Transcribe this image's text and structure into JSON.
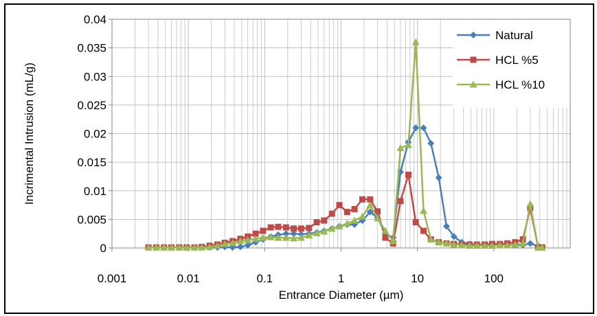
{
  "chart_data": {
    "type": "scatter",
    "xlabel": "Entrance Diameter (µm)",
    "ylabel": "Incrimental Intrusion (mL/g)",
    "xscale": "log",
    "xlim": [
      0.001,
      1000
    ],
    "ylim": [
      0,
      0.04
    ],
    "grid": "on",
    "legend_position": "top-right",
    "x_tick_labels": [
      "0.001",
      "0.01",
      "0.1",
      "1",
      "10",
      "100"
    ],
    "x_tick_values": [
      0.001,
      0.01,
      0.1,
      1,
      10,
      100
    ],
    "y_tick_labels": [
      "0",
      "0.005",
      "0.01",
      "0.015",
      "0.02",
      "0.025",
      "0.03",
      "0.035",
      "0.04"
    ],
    "y_tick_values": [
      0,
      0.005,
      0.01,
      0.015,
      0.02,
      0.025,
      0.03,
      0.035,
      0.04
    ],
    "series": [
      {
        "name": "Natural",
        "color": "#4a7ebb",
        "marker": "diamond",
        "x": [
          0.003,
          0.0038,
          0.0048,
          0.006,
          0.0076,
          0.0095,
          0.012,
          0.015,
          0.019,
          0.024,
          0.03,
          0.038,
          0.048,
          0.06,
          0.076,
          0.095,
          0.12,
          0.15,
          0.19,
          0.24,
          0.3,
          0.38,
          0.48,
          0.6,
          0.76,
          0.95,
          1.2,
          1.5,
          1.9,
          2.4,
          3.0,
          3.8,
          4.8,
          6.0,
          7.6,
          9.5,
          12,
          15,
          19,
          24,
          30,
          38,
          48,
          60,
          76,
          95,
          120,
          150,
          190,
          240,
          300,
          380,
          430
        ],
        "y": [
          0.0001,
          0.0001,
          0.0001,
          0.0001,
          0.0001,
          0.0001,
          0.0001,
          0.0001,
          0.0001,
          0.0001,
          0.0002,
          0.0001,
          0.0002,
          0.0005,
          0.001,
          0.0015,
          0.002,
          0.0023,
          0.0025,
          0.0025,
          0.0024,
          0.0025,
          0.0027,
          0.003,
          0.0034,
          0.0038,
          0.0041,
          0.0041,
          0.0048,
          0.0063,
          0.0053,
          0.0025,
          0.0018,
          0.0133,
          0.0185,
          0.021,
          0.021,
          0.0183,
          0.0123,
          0.0038,
          0.002,
          0.001,
          0.0007,
          0.0005,
          0.0005,
          0.0005,
          0.0005,
          0.0005,
          0.0005,
          0.0005,
          0.0008,
          0.0003,
          0.0001
        ]
      },
      {
        "name": "HCL %5",
        "color": "#be4b48",
        "marker": "square",
        "x": [
          0.003,
          0.0038,
          0.0048,
          0.006,
          0.0076,
          0.0095,
          0.012,
          0.015,
          0.019,
          0.024,
          0.03,
          0.038,
          0.048,
          0.06,
          0.076,
          0.095,
          0.12,
          0.15,
          0.19,
          0.24,
          0.3,
          0.38,
          0.48,
          0.6,
          0.76,
          0.95,
          1.2,
          1.5,
          1.9,
          2.4,
          3.0,
          3.8,
          4.8,
          6.0,
          7.6,
          9.5,
          12,
          15,
          19,
          24,
          30,
          38,
          48,
          60,
          76,
          95,
          120,
          150,
          190,
          240,
          300,
          380,
          430
        ],
        "y": [
          0.0001,
          0.0001,
          0.0001,
          0.0001,
          0.0001,
          0.0001,
          0.0001,
          0.0002,
          0.0004,
          0.0006,
          0.0009,
          0.0012,
          0.0016,
          0.002,
          0.0025,
          0.003,
          0.0036,
          0.0037,
          0.0036,
          0.0034,
          0.0034,
          0.0035,
          0.0045,
          0.0048,
          0.006,
          0.0075,
          0.0063,
          0.0068,
          0.0085,
          0.0085,
          0.0064,
          0.0018,
          0.0008,
          0.0082,
          0.0128,
          0.0045,
          0.003,
          0.0015,
          0.001,
          0.0008,
          0.0007,
          0.0006,
          0.0006,
          0.0006,
          0.0006,
          0.0007,
          0.0007,
          0.0008,
          0.001,
          0.0015,
          0.007,
          0.0001,
          0.0001
        ]
      },
      {
        "name": "HCL %10",
        "color": "#98b954",
        "marker": "triangle",
        "x": [
          0.003,
          0.0038,
          0.0048,
          0.006,
          0.0076,
          0.0095,
          0.012,
          0.015,
          0.019,
          0.024,
          0.03,
          0.038,
          0.048,
          0.06,
          0.076,
          0.095,
          0.12,
          0.15,
          0.19,
          0.24,
          0.3,
          0.38,
          0.48,
          0.6,
          0.76,
          0.95,
          1.2,
          1.5,
          1.9,
          2.4,
          3.0,
          3.8,
          4.8,
          6.0,
          7.6,
          9.5,
          12,
          15,
          19,
          24,
          30,
          38,
          48,
          60,
          76,
          95,
          120,
          150,
          190,
          240,
          300,
          380,
          430
        ],
        "y": [
          0.0001,
          0.0001,
          0.0001,
          0.0001,
          0.0001,
          0.0001,
          0.0001,
          0.0001,
          0.0002,
          0.0004,
          0.0007,
          0.0009,
          0.0012,
          0.0014,
          0.0016,
          0.0018,
          0.0019,
          0.0018,
          0.0018,
          0.0017,
          0.0018,
          0.0022,
          0.0026,
          0.0029,
          0.0034,
          0.0038,
          0.0043,
          0.0048,
          0.0055,
          0.0075,
          0.0052,
          0.003,
          0.0012,
          0.0175,
          0.018,
          0.036,
          0.0065,
          0.0015,
          0.001,
          0.0008,
          0.0006,
          0.0005,
          0.0004,
          0.0004,
          0.0004,
          0.0004,
          0.0005,
          0.0005,
          0.0006,
          0.0008,
          0.0077,
          0.0001,
          0.0001
        ]
      }
    ]
  }
}
